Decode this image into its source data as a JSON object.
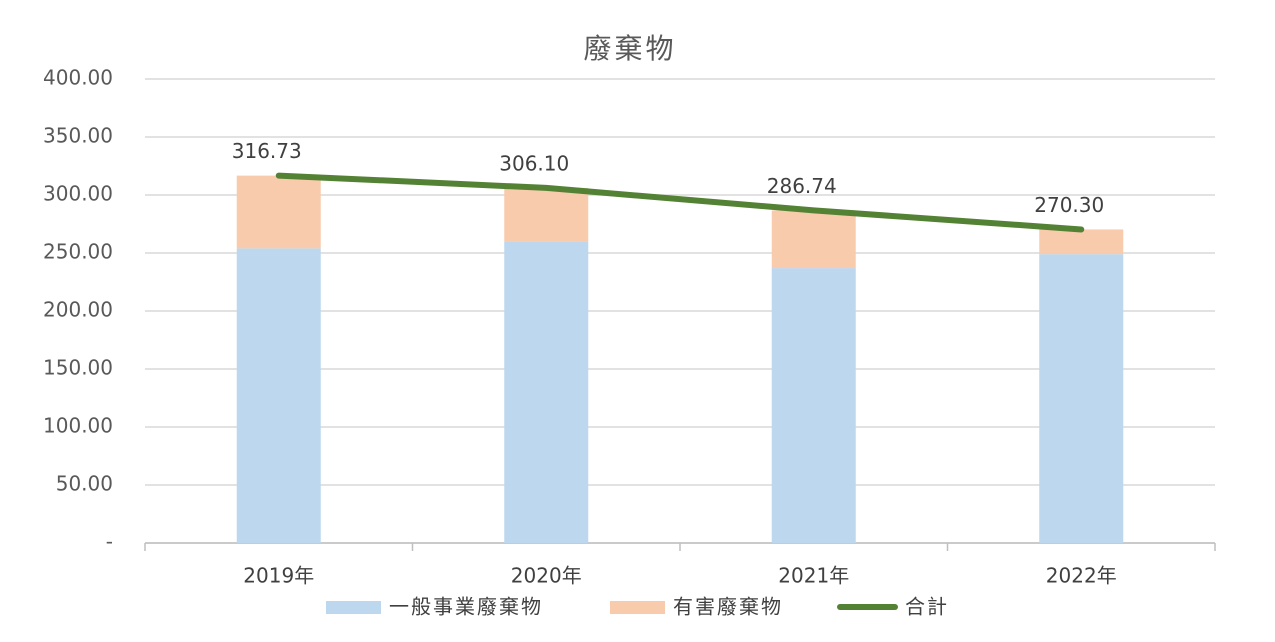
{
  "chart_data": {
    "type": "bar",
    "stacked": true,
    "title": "廢棄物",
    "categories": [
      "2019年",
      "2020年",
      "2021年",
      "2022年"
    ],
    "series": [
      {
        "name": "一般事業廢棄物",
        "color": "#bdd7ee",
        "values": [
          254,
          260,
          237,
          249
        ]
      },
      {
        "name": "有害廢棄物",
        "color": "#f8cbad",
        "values": [
          62.7,
          46.1,
          49.7,
          21.3
        ]
      },
      {
        "name": "合計",
        "type": "line",
        "color": "#548235",
        "values": [
          316.73,
          306.1,
          286.74,
          270.3
        ],
        "value_labels": [
          "316.73",
          "306.10",
          "286.74",
          "270.30"
        ]
      }
    ],
    "ylim": [
      0,
      400
    ],
    "yticks": [
      {
        "value": 0,
        "label": "-"
      },
      {
        "value": 50,
        "label": "50.00"
      },
      {
        "value": 100,
        "label": "100.00"
      },
      {
        "value": 150,
        "label": "150.00"
      },
      {
        "value": 200,
        "label": "200.00"
      },
      {
        "value": 250,
        "label": "250.00"
      },
      {
        "value": 300,
        "label": "300.00"
      },
      {
        "value": 350,
        "label": "350.00"
      },
      {
        "value": 400,
        "label": "400.00"
      }
    ],
    "grid": true,
    "legend": "bottom"
  }
}
